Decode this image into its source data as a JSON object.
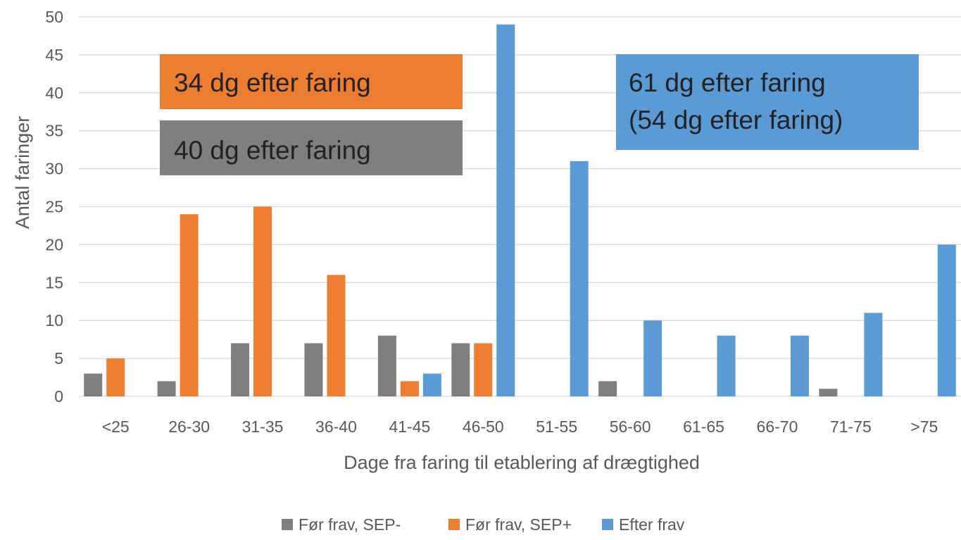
{
  "chart_data": {
    "type": "bar",
    "title": "",
    "xlabel": "Dage fra faring til etablering af drægtighed",
    "ylabel": "Antal faringer",
    "ylim": [
      0,
      50
    ],
    "yticks": [
      0,
      5,
      10,
      15,
      20,
      25,
      30,
      35,
      40,
      45,
      50
    ],
    "grid": true,
    "legend_position": "bottom",
    "categories": [
      "<25",
      "26-30",
      "31-35",
      "36-40",
      "41-45",
      "46-50",
      "51-55",
      "56-60",
      "61-65",
      "66-70",
      "71-75",
      ">75"
    ],
    "series": [
      {
        "name": "Før frav, SEP-",
        "color": "#7f7f7f",
        "values": [
          3,
          2,
          7,
          7,
          8,
          7,
          0,
          2,
          0,
          0,
          1,
          0
        ]
      },
      {
        "name": "Før frav, SEP+",
        "color": "#ed7d31",
        "values": [
          5,
          24,
          25,
          16,
          2,
          7,
          0,
          0,
          0,
          0,
          0,
          0
        ]
      },
      {
        "name": "Efter frav",
        "color": "#5b9bd5",
        "values": [
          0,
          0,
          0,
          0,
          3,
          49,
          31,
          10,
          8,
          8,
          11,
          20
        ]
      }
    ],
    "annotations": [
      {
        "series": "Før frav, SEP+",
        "color": "#ed7d31",
        "lines": [
          "34 dg efter faring"
        ]
      },
      {
        "series": "Før frav, SEP-",
        "color": "#7f7f7f",
        "lines": [
          "40 dg efter faring"
        ]
      },
      {
        "series": "Efter frav",
        "color": "#5b9bd5",
        "lines": [
          "61 dg efter faring",
          "(54 dg efter faring)"
        ]
      }
    ]
  }
}
